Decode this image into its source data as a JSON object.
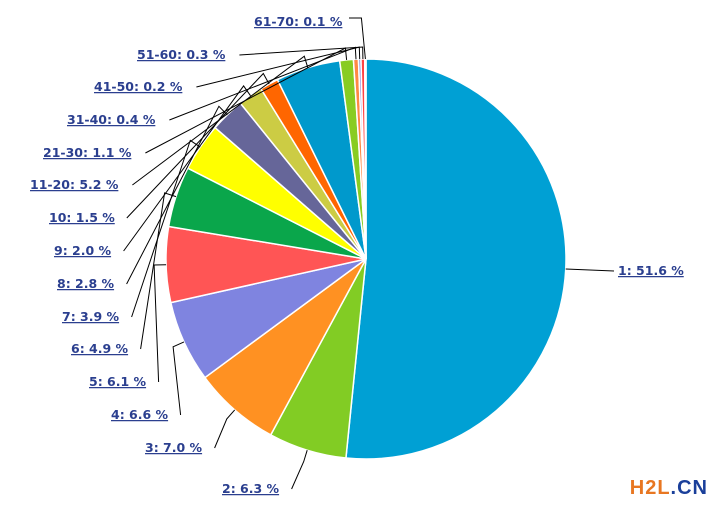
{
  "chart_data": {
    "type": "pie",
    "slices": [
      {
        "label": "1: 51.6 %",
        "value": 51.6,
        "color": "#00a0d4"
      },
      {
        "label": "2: 6.3 %",
        "value": 6.3,
        "color": "#82cc24"
      },
      {
        "label": "3: 7.0 %",
        "value": 7.0,
        "color": "#ff9122"
      },
      {
        "label": "4: 6.6 %",
        "value": 6.6,
        "color": "#7f84e0"
      },
      {
        "label": "5: 6.1 %",
        "value": 6.1,
        "color": "#ff5555"
      },
      {
        "label": "6: 4.9 %",
        "value": 4.9,
        "color": "#0aa64b"
      },
      {
        "label": "7: 3.9 %",
        "value": 3.9,
        "color": "#ffff00"
      },
      {
        "label": "8: 2.8 %",
        "value": 2.8,
        "color": "#666699"
      },
      {
        "label": "9: 2.0 %",
        "value": 2.0,
        "color": "#cccc44"
      },
      {
        "label": "10: 1.5 %",
        "value": 1.5,
        "color": "#ff6600"
      },
      {
        "label": "11-20: 5.2 %",
        "value": 5.2,
        "color": "#0099cc"
      },
      {
        "label": "21-30: 1.1 %",
        "value": 1.1,
        "color": "#88cc22"
      },
      {
        "label": "31-40: 0.4 %",
        "value": 0.4,
        "color": "#ff8844"
      },
      {
        "label": "41-50: 0.2 %",
        "value": 0.2,
        "color": "#8888dd"
      },
      {
        "label": "51-60: 0.3 %",
        "value": 0.3,
        "color": "#ff4444"
      },
      {
        "label": "61-70: 0.1 %",
        "value": 0.1,
        "color": "#22aa55"
      }
    ]
  },
  "watermark": {
    "part1": "H2L",
    "part2": ".CN"
  }
}
